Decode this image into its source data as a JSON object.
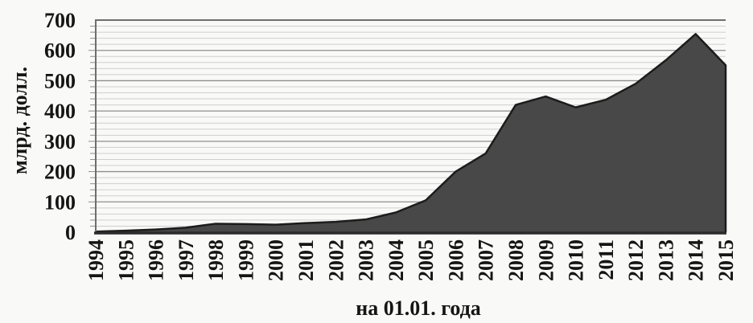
{
  "chart_data": {
    "type": "area",
    "xlabel": "на 01.01. года",
    "ylabel": "млрд. долл.",
    "categories": [
      "1994",
      "1995",
      "1996",
      "1997",
      "1998",
      "1999",
      "2000",
      "2001",
      "2002",
      "2003",
      "2004",
      "2005",
      "2006",
      "2007",
      "2008",
      "2009",
      "2010",
      "2011",
      "2012",
      "2013",
      "2014",
      "2015"
    ],
    "values": [
      2,
      5,
      9,
      15,
      28,
      27,
      25,
      30,
      34,
      42,
      65,
      105,
      200,
      260,
      420,
      448,
      412,
      437,
      490,
      567,
      654,
      551
    ],
    "ylim": [
      0,
      700
    ],
    "ytick_step": 100,
    "ytick_minor_step": 20,
    "yticks": [
      "0",
      "100",
      "200",
      "300",
      "400",
      "500",
      "600",
      "700"
    ],
    "grid": "horizontal major and minor gridlines",
    "legend": "none",
    "colors": {
      "area_fill": "#484848",
      "area_edge": "#1c1c1c",
      "major_grid": "#8e8e8e",
      "minor_grid": "#cfcfcf",
      "frame": "#6e6e6e",
      "axis_line": "#2b2b2b",
      "text": "#151515",
      "background": "#f9f9f8"
    }
  }
}
